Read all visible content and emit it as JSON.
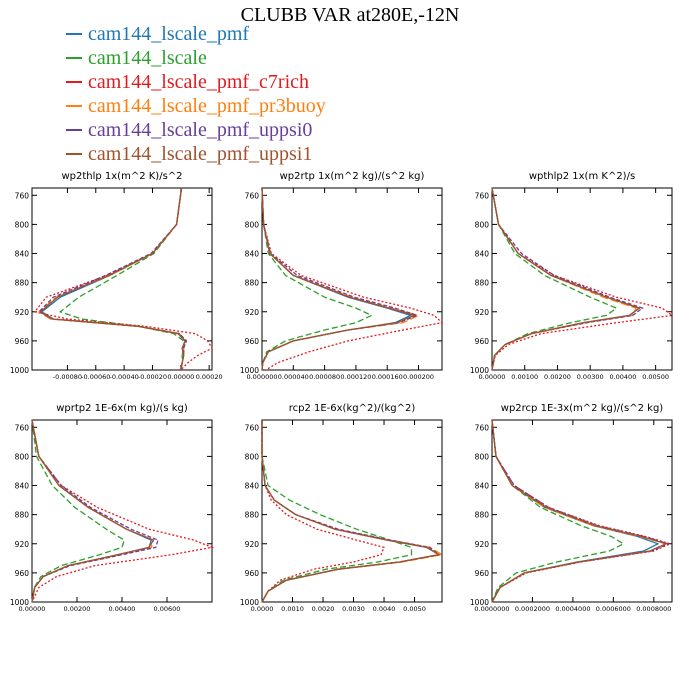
{
  "title": "CLUBB VAR at280E,-12N",
  "legend": [
    {
      "name": "cam144_lscale_pmf",
      "color": "#1f77b4"
    },
    {
      "name": "cam144_lscale",
      "color": "#2ca02c"
    },
    {
      "name": "cam144_lscale_pmf_c7rich",
      "color": "#e31a1c"
    },
    {
      "name": "cam144_lscale_pmf_pr3buoy",
      "color": "#ff7f0e"
    },
    {
      "name": "cam144_lscale_pmf_uppsi0",
      "color": "#6a3d9a"
    },
    {
      "name": "cam144_lscale_pmf_uppsi1",
      "color": "#a0522d"
    }
  ],
  "chart_data": [
    {
      "type": "line",
      "title": "wp2thlp  1x(m^2 K)/s^2",
      "y_ticks": [
        "760",
        "800",
        "840",
        "880",
        "920",
        "960",
        "1000"
      ],
      "ylim": [
        750,
        1000
      ],
      "xlim": [
        -0.00105,
        0.00022
      ],
      "x_ticks": [
        -0.0008,
        -0.0006,
        -0.0004,
        -0.0002,
        0,
        0.0002
      ],
      "x_tick_labels": [
        "-0.00080",
        "-0.00060",
        "-0.00040",
        "-0.00020",
        "0.00000",
        "0.00020"
      ],
      "y": [
        750,
        800,
        840,
        870,
        900,
        920,
        930,
        940,
        950,
        960,
        970,
        980,
        990,
        1000
      ],
      "series": [
        {
          "values": [
            5e-06,
            -3e-05,
            -0.0002,
            -0.0005,
            -0.00085,
            -0.00098,
            -0.0009,
            -0.0003,
            -2e-05,
            3e-05,
            1e-05,
            2e-05,
            1e-05,
            0.0
          ]
        },
        {
          "values": [
            5e-06,
            -3e-05,
            -0.00019,
            -0.00045,
            -0.00072,
            -0.00085,
            -0.0007,
            -0.0003,
            -5e-05,
            2e-05,
            2e-05,
            1e-05,
            1e-05,
            0.0
          ]
        },
        {
          "values": [
            5e-06,
            -3e-05,
            -0.0002,
            -0.00052,
            -0.00095,
            -0.00103,
            -0.0008,
            -0.00025,
            0.0001,
            0.00019,
            0.00022,
            0.00012,
            5e-05,
            0.0
          ]
        },
        {
          "values": [
            5e-06,
            -3e-05,
            -0.0002,
            -0.0005,
            -0.00088,
            -0.001,
            -0.00092,
            -0.0003,
            -1e-05,
            3e-05,
            2e-05,
            2e-05,
            1e-05,
            0.0
          ]
        },
        {
          "values": [
            5e-06,
            -3e-05,
            -0.00021,
            -0.00053,
            -0.0009,
            -0.001,
            -0.0009,
            -0.0003,
            -1e-05,
            4e-05,
            2e-05,
            2e-05,
            1e-05,
            0.0
          ]
        },
        {
          "values": [
            5e-06,
            -3e-05,
            -0.0002,
            -0.00051,
            -0.00087,
            -0.00099,
            -0.00091,
            -0.0003,
            -2e-05,
            3e-05,
            1e-05,
            2e-05,
            1e-05,
            0.0
          ]
        }
      ]
    },
    {
      "type": "line",
      "title": "wp2rtp  1x(m^2 kg)/(s^2 kg)",
      "y_ticks": [
        "760",
        "800",
        "840",
        "880",
        "920",
        "960",
        "1000"
      ],
      "ylim": [
        750,
        1000
      ],
      "xlim": [
        0,
        0.00023
      ],
      "x_ticks": [
        0,
        4e-05,
        8e-05,
        0.00012,
        0.00016,
        0.0002
      ],
      "x_tick_labels": [
        "0.000000",
        "0.000040",
        "0.000080",
        "0.000120",
        "0.000160",
        "0.000200"
      ],
      "y": [
        750,
        800,
        840,
        870,
        900,
        915,
        925,
        935,
        945,
        960,
        975,
        990,
        1000
      ],
      "series": [
        {
          "values": [
            0.0,
            2e-06,
            1e-05,
            4e-05,
            0.00011,
            0.00016,
            0.00019,
            0.00017,
            0.00011,
            4e-05,
            8e-06,
            1e-06,
            0.0
          ]
        },
        {
          "values": [
            0.0,
            2e-06,
            8e-06,
            3e-05,
            8e-05,
            0.00012,
            0.00014,
            0.00012,
            8e-05,
            3e-05,
            6e-06,
            1e-06,
            0.0
          ]
        },
        {
          "values": [
            0.0,
            2e-06,
            1.2e-05,
            5e-05,
            0.00013,
            0.00019,
            0.00022,
            0.00023,
            0.00018,
            0.00011,
            6e-05,
            2e-05,
            5e-06
          ]
        },
        {
          "values": [
            0.0,
            2e-06,
            1e-05,
            4e-05,
            0.000115,
            0.000165,
            0.0002,
            0.00018,
            0.00011,
            4e-05,
            8e-06,
            1e-06,
            0.0
          ]
        },
        {
          "values": [
            0.0,
            2e-06,
            1.1e-05,
            4.5e-05,
            0.000118,
            0.00017,
            0.000198,
            0.000175,
            0.00011,
            4e-05,
            8e-06,
            1e-06,
            0.0
          ]
        },
        {
          "values": [
            0.0,
            2e-06,
            1e-05,
            4e-05,
            0.000112,
            0.000162,
            0.000195,
            0.000172,
            0.00011,
            4e-05,
            8e-06,
            1e-06,
            0.0
          ]
        }
      ]
    },
    {
      "type": "line",
      "title": "wpthlp2  1x(m K^2)/s",
      "y_ticks": [
        "760",
        "800",
        "840",
        "880",
        "920",
        "960",
        "1000"
      ],
      "ylim": [
        750,
        1000
      ],
      "xlim": [
        0,
        0.0055
      ],
      "x_ticks": [
        0,
        0.001,
        0.002,
        0.003,
        0.004,
        0.005
      ],
      "x_tick_labels": [
        "0.00000",
        "0.00100",
        "0.00200",
        "0.00300",
        "0.00400",
        "0.00500"
      ],
      "y": [
        750,
        800,
        840,
        870,
        900,
        915,
        925,
        935,
        950,
        965,
        980,
        1000
      ],
      "series": [
        {
          "values": [
            0.0,
            0.0002,
            0.0008,
            0.0018,
            0.0035,
            0.0045,
            0.0042,
            0.0028,
            0.0012,
            0.0004,
            8e-05,
            0.0
          ]
        },
        {
          "values": [
            0.0,
            0.0002,
            0.0007,
            0.0016,
            0.003,
            0.0038,
            0.0035,
            0.0024,
            0.0011,
            0.0004,
            8e-05,
            0.0
          ]
        },
        {
          "values": [
            0.0,
            0.0002,
            0.0008,
            0.0019,
            0.0038,
            0.0052,
            0.0055,
            0.0038,
            0.0015,
            0.0005,
            0.0001,
            0.0
          ]
        },
        {
          "values": [
            0.0,
            0.0002,
            0.0008,
            0.0018,
            0.0034,
            0.0044,
            0.0043,
            0.0028,
            0.0012,
            0.0004,
            8e-05,
            0.0
          ]
        },
        {
          "values": [
            0.0,
            0.0002,
            0.0009,
            0.0019,
            0.0036,
            0.0046,
            0.0043,
            0.0029,
            0.0012,
            0.0004,
            8e-05,
            0.0
          ]
        },
        {
          "values": [
            0.0,
            0.0002,
            0.0008,
            0.0018,
            0.0035,
            0.0045,
            0.0042,
            0.0028,
            0.0012,
            0.0004,
            8e-05,
            0.0
          ]
        }
      ]
    },
    {
      "type": "line",
      "title": "wprtp2  1E-6x(m kg)/(s kg)",
      "y_ticks": [
        "760",
        "800",
        "840",
        "880",
        "920",
        "960",
        "1000"
      ],
      "ylim": [
        750,
        1000
      ],
      "xlim": [
        0,
        0.008
      ],
      "x_ticks": [
        0,
        0.002,
        0.004,
        0.006
      ],
      "x_tick_labels": [
        "0.00000",
        "0.00200",
        "0.00400",
        "0.00600"
      ],
      "y": [
        750,
        800,
        840,
        870,
        900,
        915,
        925,
        935,
        950,
        965,
        980,
        1000
      ],
      "series": [
        {
          "values": [
            0.0,
            0.0003,
            0.0012,
            0.0025,
            0.0042,
            0.0053,
            0.0052,
            0.0038,
            0.0016,
            0.0005,
            0.00012,
            0.0
          ]
        },
        {
          "values": [
            0.0,
            0.0002,
            0.0009,
            0.0019,
            0.0033,
            0.0041,
            0.004,
            0.003,
            0.0013,
            0.0004,
            0.0001,
            0.0
          ]
        },
        {
          "values": [
            0.0,
            0.0003,
            0.0013,
            0.0029,
            0.0052,
            0.0072,
            0.008,
            0.0062,
            0.0028,
            0.0011,
            0.0003,
            0.0
          ]
        },
        {
          "values": [
            0.0,
            0.0003,
            0.0012,
            0.0025,
            0.0042,
            0.0054,
            0.0053,
            0.0039,
            0.0016,
            0.0005,
            0.00012,
            0.0
          ]
        },
        {
          "values": [
            0.0,
            0.0003,
            0.0013,
            0.0026,
            0.0044,
            0.0056,
            0.0055,
            0.004,
            0.0017,
            0.0005,
            0.00012,
            0.0
          ]
        },
        {
          "values": [
            0.0,
            0.0003,
            0.0012,
            0.0025,
            0.0042,
            0.0054,
            0.0052,
            0.0038,
            0.0016,
            0.0005,
            0.00012,
            0.0
          ]
        }
      ]
    },
    {
      "type": "line",
      "title": "rcp2  1E-6x(kg^2)/(kg^2)",
      "y_ticks": [
        "760",
        "800",
        "840",
        "880",
        "920",
        "960",
        "1000"
      ],
      "ylim": [
        750,
        1000
      ],
      "xlim": [
        0,
        0.0059
      ],
      "x_ticks": [
        0,
        0.001,
        0.002,
        0.003,
        0.004,
        0.005
      ],
      "x_tick_labels": [
        "0.0000",
        "0.0010",
        "0.0020",
        "0.0030",
        "0.0040",
        "0.0050"
      ],
      "y": [
        750,
        800,
        840,
        860,
        880,
        900,
        915,
        925,
        935,
        945,
        955,
        970,
        985,
        1000
      ],
      "series": [
        {
          "values": [
            0.0,
            0.0,
            0.0001,
            0.0004,
            0.0011,
            0.0024,
            0.0041,
            0.0054,
            0.0058,
            0.0045,
            0.0025,
            0.0008,
            0.0002,
            0.0
          ]
        },
        {
          "values": [
            0.0,
            0.0,
            0.0002,
            0.0009,
            0.0019,
            0.0031,
            0.0042,
            0.0049,
            0.0049,
            0.0038,
            0.0021,
            0.0007,
            0.0002,
            0.0
          ]
        },
        {
          "values": [
            0.0,
            0.0,
            0.0001,
            0.0003,
            0.0008,
            0.0018,
            0.0031,
            0.004,
            0.0039,
            0.003,
            0.0017,
            0.0006,
            0.0002,
            0.0
          ]
        },
        {
          "values": [
            0.0,
            0.0,
            0.0001,
            0.0004,
            0.0011,
            0.0024,
            0.0042,
            0.0055,
            0.0059,
            0.0046,
            0.0025,
            0.0008,
            0.0002,
            0.0
          ]
        },
        {
          "values": [
            0.0,
            0.0,
            0.0001,
            0.0004,
            0.0011,
            0.0025,
            0.0042,
            0.0055,
            0.0058,
            0.0045,
            0.0025,
            0.0008,
            0.0002,
            0.0
          ]
        },
        {
          "values": [
            0.0,
            0.0,
            0.0001,
            0.0004,
            0.0011,
            0.0024,
            0.0041,
            0.0054,
            0.0058,
            0.0045,
            0.0025,
            0.0008,
            0.0002,
            0.0
          ]
        }
      ]
    },
    {
      "type": "line",
      "title": "wp2rcp  1E-3x(m^2 kg)/(s^2 kg)",
      "y_ticks": [
        "760",
        "800",
        "840",
        "880",
        "920",
        "960",
        "1000"
      ],
      "ylim": [
        750,
        1000
      ],
      "xlim": [
        0,
        0.00089
      ],
      "x_ticks": [
        0,
        0.0002,
        0.0004,
        0.0006,
        0.0008
      ],
      "x_tick_labels": [
        "0.0000000",
        "0.0002000",
        "0.0004000",
        "0.0006000",
        "0.0008000"
      ],
      "y": [
        750,
        800,
        840,
        870,
        895,
        910,
        920,
        930,
        945,
        960,
        980,
        1000
      ],
      "series": [
        {
          "values": [
            0.0,
            2e-05,
            0.0001,
            0.00026,
            0.0005,
            0.00072,
            0.00082,
            0.00075,
            0.00042,
            0.00016,
            4e-05,
            0.0
          ]
        },
        {
          "values": [
            0.0,
            2e-05,
            0.0001,
            0.00024,
            0.00044,
            0.00059,
            0.00065,
            0.00058,
            0.00032,
            0.00012,
            3e-05,
            0.0
          ]
        },
        {
          "values": [
            0.0,
            2e-05,
            0.00011,
            0.00028,
            0.00053,
            0.00076,
            0.00088,
            0.0008,
            0.00044,
            0.00017,
            4e-05,
            0.0
          ]
        },
        {
          "values": [
            0.0,
            2e-05,
            0.0001,
            0.00026,
            0.0005,
            0.00073,
            0.00086,
            0.00078,
            0.00043,
            0.00016,
            4e-05,
            0.0
          ]
        },
        {
          "values": [
            0.0,
            2e-05,
            0.00011,
            0.00028,
            0.00052,
            0.00075,
            0.00087,
            0.00079,
            0.00043,
            0.00016,
            4e-05,
            0.0
          ]
        },
        {
          "values": [
            0.0,
            2e-05,
            0.0001,
            0.00027,
            0.00051,
            0.00074,
            0.00086,
            0.00078,
            0.00043,
            0.00016,
            4e-05,
            0.0
          ]
        }
      ]
    }
  ]
}
